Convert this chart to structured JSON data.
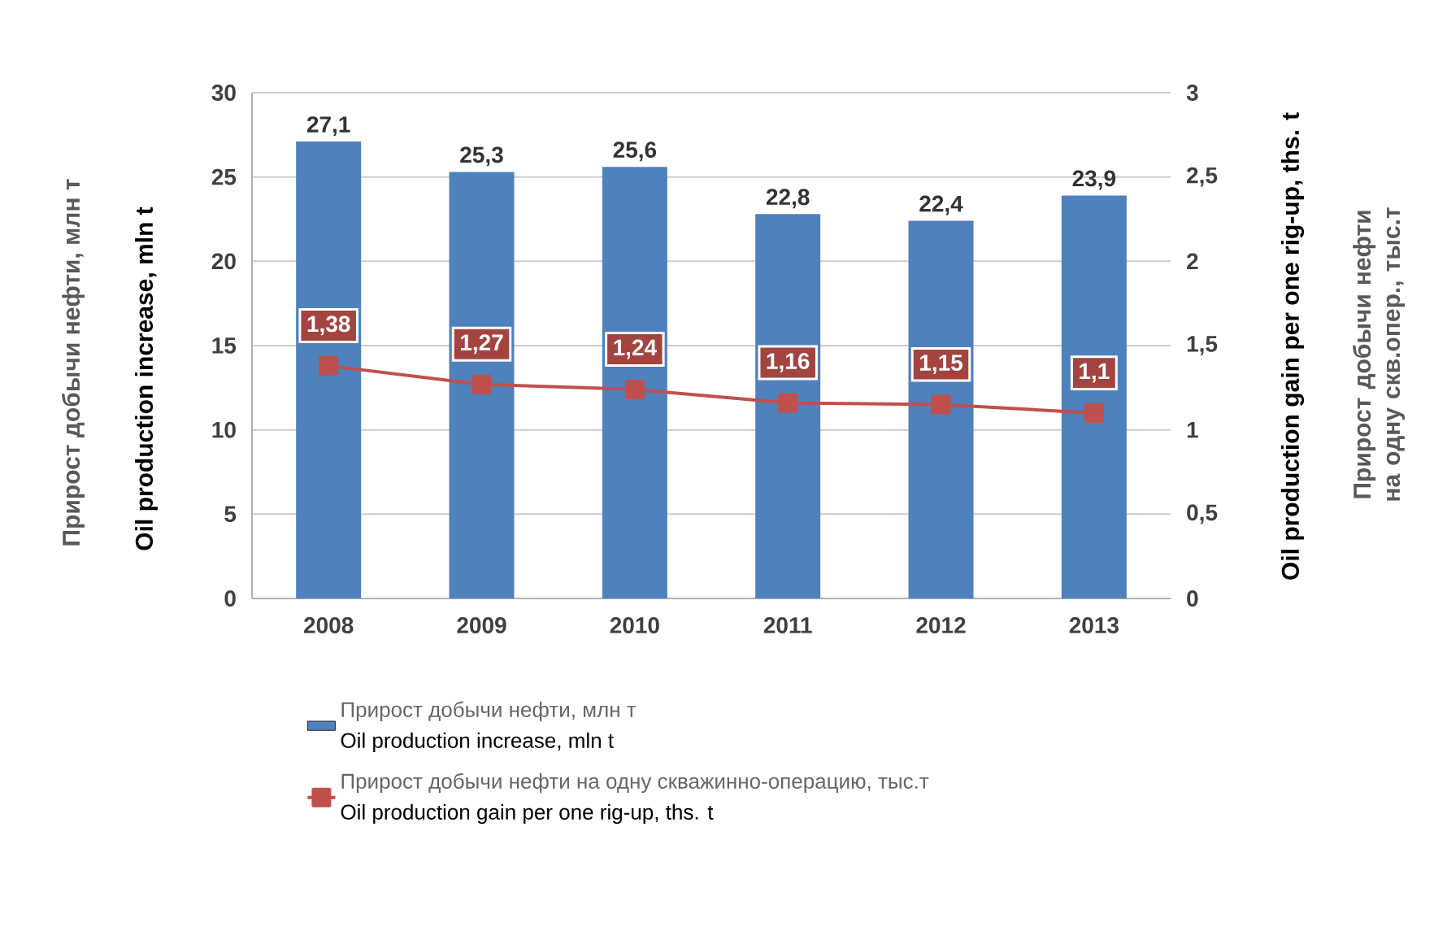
{
  "chart_data": {
    "type": "bar",
    "categories": [
      "2008",
      "2009",
      "2010",
      "2011",
      "2012",
      "2013"
    ],
    "series": [
      {
        "name": "Прирост добычи нефти, млн т",
        "color": "#4f81bd",
        "values": [
          27.1,
          25.3,
          25.6,
          22.8,
          22.4,
          23.9
        ],
        "value_labels": [
          "27,1",
          "25,3",
          "25,6",
          "22,8",
          "22,4",
          "23,9"
        ]
      },
      {
        "name": "Прирост добычи нефти на одну скважинно-операцию, тыс.т",
        "type": "line",
        "axis": "y2",
        "marker": "square",
        "line_style": "solid",
        "color": "#c0504d",
        "values": [
          1.38,
          1.27,
          1.24,
          1.16,
          1.15,
          1.1
        ],
        "value_labels": [
          "1,38",
          "1,27",
          "1,24",
          "1,16",
          "1,15",
          "1,1"
        ]
      }
    ],
    "ylabel": "Oil production increase, mln t",
    "y2label": "Oil production gain per one rig-up, ths. t",
    "annotations": [
      "Прирост добычи нефти, млн т",
      "Прирост добычи нефти на одну скв.опер., тыс.т",
      "Oil production increase, mln t",
      "Oil production gain per one rig-up, ths. t"
    ],
    "ylim": [
      0,
      30
    ],
    "yticks": [
      0,
      5,
      10,
      15,
      20,
      25,
      30
    ],
    "y2lim": [
      0,
      3
    ],
    "y2ticks": [
      0,
      {
        "value": 0.5,
        "label": "0,5"
      },
      1,
      {
        "value": 1.5,
        "label": "1,5"
      },
      2,
      {
        "value": 2.5,
        "label": "2,5"
      },
      3
    ],
    "grid": "y",
    "legend": "bottom"
  }
}
